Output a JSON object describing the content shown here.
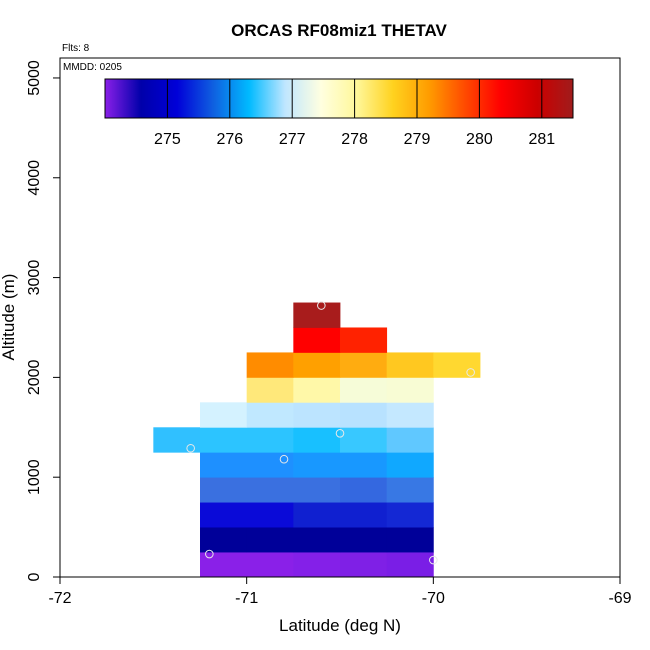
{
  "chart_data": {
    "type": "heatmap",
    "title": "ORCAS RF08miz1 THETAV",
    "xlabel": "Latitude (deg N)",
    "ylabel": "Altitude (m)",
    "xlim": [
      -72,
      -69
    ],
    "ylim": [
      0,
      5200
    ],
    "x_ticks": [
      -72,
      -71,
      -70,
      -69
    ],
    "x_tick_labels": [
      "-72",
      "-71",
      "-70",
      "-69"
    ],
    "y_ticks": [
      0,
      1000,
      2000,
      3000,
      4000,
      5000
    ],
    "y_tick_labels": [
      "0",
      "1000",
      "2000",
      "3000",
      "4000",
      "5000"
    ],
    "annotations": {
      "flights": "Flts: 8",
      "date": "MMDD: 0205"
    },
    "colorbar": {
      "range": [
        274,
        281.5
      ],
      "ticks": [
        275,
        276,
        277,
        278,
        279,
        280,
        281
      ],
      "tick_labels": [
        "275",
        "276",
        "277",
        "278",
        "279",
        "280",
        "281"
      ],
      "stops": [
        "#8a1fe8",
        "#0000aa",
        "#0000d8",
        "#0f5fe0",
        "#00baff",
        "#bfe6ff",
        "#ffffe0",
        "#fff799",
        "#ffd21f",
        "#ff9c00",
        "#ff4a00",
        "#ff0000",
        "#cc0000",
        "#a01c1c"
      ]
    },
    "cells": [
      {
        "lat0": -71.25,
        "lat1": -71.0,
        "alt0": 0,
        "alt1": 250,
        "value": 274.3,
        "color": "#8a20e8"
      },
      {
        "lat0": -71.0,
        "lat1": -70.75,
        "alt0": 0,
        "alt1": 250,
        "value": 274.3,
        "color": "#8a20e8"
      },
      {
        "lat0": -70.75,
        "lat1": -70.5,
        "alt0": 0,
        "alt1": 250,
        "value": 274.3,
        "color": "#8420e8"
      },
      {
        "lat0": -70.5,
        "lat1": -70.25,
        "alt0": 0,
        "alt1": 250,
        "value": 274.4,
        "color": "#7f20e6"
      },
      {
        "lat0": -70.25,
        "lat1": -70.0,
        "alt0": 0,
        "alt1": 250,
        "value": 274.4,
        "color": "#7a1ee6"
      },
      {
        "lat0": -71.25,
        "lat1": -71.0,
        "alt0": 250,
        "alt1": 500,
        "value": 274.8,
        "color": "#000099"
      },
      {
        "lat0": -71.0,
        "lat1": -70.75,
        "alt0": 250,
        "alt1": 500,
        "value": 274.8,
        "color": "#000099"
      },
      {
        "lat0": -70.75,
        "lat1": -70.5,
        "alt0": 250,
        "alt1": 500,
        "value": 274.8,
        "color": "#000099"
      },
      {
        "lat0": -70.5,
        "lat1": -70.25,
        "alt0": 250,
        "alt1": 500,
        "value": 274.8,
        "color": "#000099"
      },
      {
        "lat0": -70.25,
        "lat1": -70.0,
        "alt0": 250,
        "alt1": 500,
        "value": 274.8,
        "color": "#000099"
      },
      {
        "lat0": -71.25,
        "lat1": -71.0,
        "alt0": 500,
        "alt1": 750,
        "value": 275.2,
        "color": "#0a0ad8"
      },
      {
        "lat0": -71.0,
        "lat1": -70.75,
        "alt0": 500,
        "alt1": 750,
        "value": 275.2,
        "color": "#0a0ad8"
      },
      {
        "lat0": -70.75,
        "lat1": -70.5,
        "alt0": 500,
        "alt1": 750,
        "value": 275.3,
        "color": "#1020d0"
      },
      {
        "lat0": -70.5,
        "lat1": -70.25,
        "alt0": 500,
        "alt1": 750,
        "value": 275.3,
        "color": "#1020d0"
      },
      {
        "lat0": -70.25,
        "lat1": -70.0,
        "alt0": 500,
        "alt1": 750,
        "value": 275.3,
        "color": "#1428d4"
      },
      {
        "lat0": -71.25,
        "lat1": -71.0,
        "alt0": 750,
        "alt1": 1000,
        "value": 275.8,
        "color": "#3a70e0"
      },
      {
        "lat0": -71.0,
        "lat1": -70.75,
        "alt0": 750,
        "alt1": 1000,
        "value": 275.8,
        "color": "#3a70e0"
      },
      {
        "lat0": -70.75,
        "lat1": -70.5,
        "alt0": 750,
        "alt1": 1000,
        "value": 275.8,
        "color": "#3a70e0"
      },
      {
        "lat0": -70.5,
        "lat1": -70.25,
        "alt0": 750,
        "alt1": 1000,
        "value": 275.7,
        "color": "#3468e0"
      },
      {
        "lat0": -70.25,
        "lat1": -70.0,
        "alt0": 750,
        "alt1": 1000,
        "value": 275.9,
        "color": "#3878e4"
      },
      {
        "lat0": -71.25,
        "lat1": -71.0,
        "alt0": 1000,
        "alt1": 1250,
        "value": 276.2,
        "color": "#1e90ff"
      },
      {
        "lat0": -71.0,
        "lat1": -70.75,
        "alt0": 1000,
        "alt1": 1250,
        "value": 276.2,
        "color": "#1e90ff"
      },
      {
        "lat0": -70.75,
        "lat1": -70.5,
        "alt0": 1000,
        "alt1": 1250,
        "value": 276.3,
        "color": "#1898ff"
      },
      {
        "lat0": -70.5,
        "lat1": -70.25,
        "alt0": 1000,
        "alt1": 1250,
        "value": 276.3,
        "color": "#1898ff"
      },
      {
        "lat0": -70.25,
        "lat1": -70.0,
        "alt0": 1000,
        "alt1": 1250,
        "value": 276.5,
        "color": "#10a8ff"
      },
      {
        "lat0": -71.5,
        "lat1": -71.25,
        "alt0": 1250,
        "alt1": 1500,
        "value": 276.8,
        "color": "#30c0ff"
      },
      {
        "lat0": -71.25,
        "lat1": -71.0,
        "alt0": 1250,
        "alt1": 1500,
        "value": 276.8,
        "color": "#2cc4ff"
      },
      {
        "lat0": -71.0,
        "lat1": -70.75,
        "alt0": 1250,
        "alt1": 1500,
        "value": 276.8,
        "color": "#2cc4ff"
      },
      {
        "lat0": -70.75,
        "lat1": -70.5,
        "alt0": 1250,
        "alt1": 1500,
        "value": 276.8,
        "color": "#18c0ff"
      },
      {
        "lat0": -70.5,
        "lat1": -70.25,
        "alt0": 1250,
        "alt1": 1500,
        "value": 276.9,
        "color": "#38c8ff"
      },
      {
        "lat0": -70.25,
        "lat1": -70.0,
        "alt0": 1250,
        "alt1": 1500,
        "value": 277.1,
        "color": "#60c8ff"
      },
      {
        "lat0": -71.25,
        "lat1": -71.0,
        "alt0": 1500,
        "alt1": 1750,
        "value": 277.6,
        "color": "#d4f2ff"
      },
      {
        "lat0": -71.0,
        "lat1": -70.75,
        "alt0": 1500,
        "alt1": 1750,
        "value": 277.4,
        "color": "#c0e8ff"
      },
      {
        "lat0": -70.75,
        "lat1": -70.5,
        "alt0": 1500,
        "alt1": 1750,
        "value": 277.3,
        "color": "#bce4ff"
      },
      {
        "lat0": -70.5,
        "lat1": -70.25,
        "alt0": 1500,
        "alt1": 1750,
        "value": 277.3,
        "color": "#b8e2ff"
      },
      {
        "lat0": -70.25,
        "lat1": -70.0,
        "alt0": 1500,
        "alt1": 1750,
        "value": 277.4,
        "color": "#c4e8ff"
      },
      {
        "lat0": -71.0,
        "lat1": -70.75,
        "alt0": 1750,
        "alt1": 2000,
        "value": 278.7,
        "color": "#ffe87a"
      },
      {
        "lat0": -70.75,
        "lat1": -70.5,
        "alt0": 1750,
        "alt1": 2000,
        "value": 278.4,
        "color": "#fff8a8"
      },
      {
        "lat0": -70.5,
        "lat1": -70.25,
        "alt0": 1750,
        "alt1": 2000,
        "value": 278.2,
        "color": "#f6fcd8"
      },
      {
        "lat0": -70.25,
        "lat1": -70.0,
        "alt0": 1750,
        "alt1": 2000,
        "value": 278.2,
        "color": "#f8fcd4"
      },
      {
        "lat0": -71.0,
        "lat1": -70.75,
        "alt0": 2000,
        "alt1": 2250,
        "value": 279.6,
        "color": "#ff8c00"
      },
      {
        "lat0": -70.75,
        "lat1": -70.5,
        "alt0": 2000,
        "alt1": 2250,
        "value": 279.4,
        "color": "#ffa000"
      },
      {
        "lat0": -70.5,
        "lat1": -70.25,
        "alt0": 2000,
        "alt1": 2250,
        "value": 279.3,
        "color": "#ffac10"
      },
      {
        "lat0": -70.25,
        "lat1": -70.0,
        "alt0": 2000,
        "alt1": 2250,
        "value": 279.0,
        "color": "#ffc820"
      },
      {
        "lat0": -70.0,
        "lat1": -69.75,
        "alt0": 2000,
        "alt1": 2250,
        "value": 278.9,
        "color": "#ffd830"
      },
      {
        "lat0": -70.75,
        "lat1": -70.5,
        "alt0": 2250,
        "alt1": 2500,
        "value": 280.5,
        "color": "#ff0000"
      },
      {
        "lat0": -70.5,
        "lat1": -70.25,
        "alt0": 2250,
        "alt1": 2500,
        "value": 280.3,
        "color": "#ff2200"
      },
      {
        "lat0": -70.75,
        "lat1": -70.5,
        "alt0": 2500,
        "alt1": 2750,
        "value": 281.3,
        "color": "#a81c1c"
      }
    ],
    "points": [
      {
        "lat": -71.2,
        "alt": 230
      },
      {
        "lat": -70.0,
        "alt": 170
      },
      {
        "lat": -70.8,
        "alt": 1180
      },
      {
        "lat": -71.3,
        "alt": 1290
      },
      {
        "lat": -70.5,
        "alt": 1440
      },
      {
        "lat": -69.8,
        "alt": 2050
      },
      {
        "lat": -70.6,
        "alt": 2720
      }
    ]
  }
}
